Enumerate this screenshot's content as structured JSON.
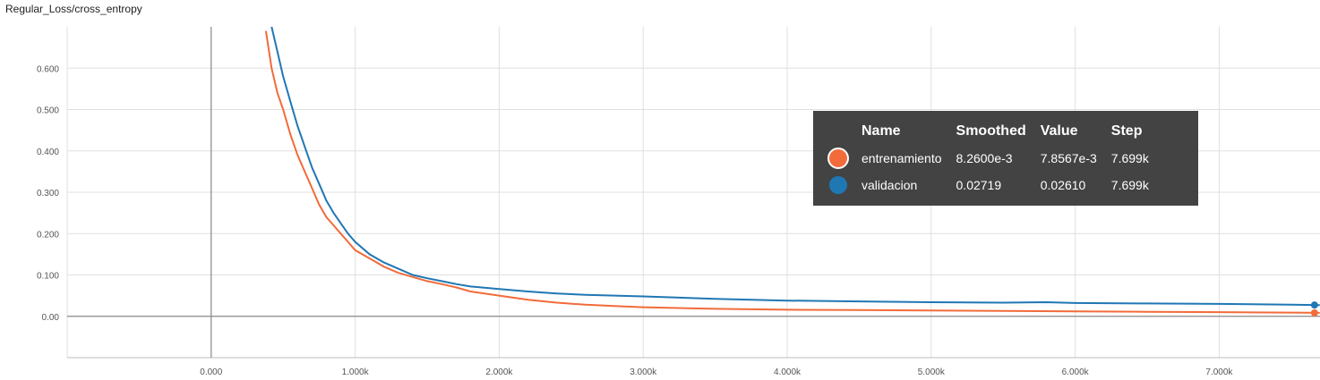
{
  "chart_data": {
    "type": "line",
    "title": "Regular_Loss/cross_entropy",
    "xlabel": "",
    "ylabel": "",
    "xlim": [
      -1000,
      7700
    ],
    "ylim": [
      -0.1,
      0.7
    ],
    "x_ticks": [
      0,
      1000,
      2000,
      3000,
      4000,
      5000,
      6000,
      7000
    ],
    "x_tick_labels": [
      "0.000",
      "1.000k",
      "2.000k",
      "3.000k",
      "4.000k",
      "5.000k",
      "6.000k",
      "7.000k"
    ],
    "y_ticks": [
      0,
      0.1,
      0.2,
      0.3,
      0.4,
      0.5,
      0.6
    ],
    "y_tick_labels": [
      "0.00",
      "0.100",
      "0.200",
      "0.300",
      "0.400",
      "0.500",
      "0.600"
    ],
    "grid": true,
    "series": [
      {
        "name": "entrenamiento",
        "color": "#f26b3a",
        "x": [
          380,
          420,
          460,
          500,
          550,
          600,
          650,
          700,
          750,
          800,
          850,
          900,
          950,
          1000,
          1100,
          1200,
          1300,
          1400,
          1500,
          1600,
          1700,
          1800,
          2000,
          2200,
          2400,
          2600,
          2800,
          3000,
          3500,
          4000,
          4500,
          5000,
          5500,
          6000,
          6500,
          7000,
          7500,
          7699
        ],
        "y": [
          0.69,
          0.6,
          0.54,
          0.5,
          0.44,
          0.39,
          0.35,
          0.31,
          0.27,
          0.24,
          0.22,
          0.2,
          0.18,
          0.16,
          0.14,
          0.12,
          0.105,
          0.095,
          0.085,
          0.078,
          0.07,
          0.06,
          0.05,
          0.04,
          0.033,
          0.028,
          0.025,
          0.022,
          0.018,
          0.016,
          0.015,
          0.014,
          0.013,
          0.012,
          0.011,
          0.01,
          0.009,
          0.0083
        ]
      },
      {
        "name": "validacion",
        "color": "#1f77b4",
        "x": [
          420,
          460,
          500,
          550,
          600,
          650,
          700,
          750,
          800,
          850,
          900,
          950,
          1000,
          1100,
          1200,
          1300,
          1400,
          1500,
          1600,
          1700,
          1800,
          2000,
          2200,
          2400,
          2600,
          2800,
          3000,
          3500,
          4000,
          4500,
          5000,
          5500,
          5800,
          6000,
          6500,
          7000,
          7500,
          7699
        ],
        "y": [
          0.7,
          0.64,
          0.58,
          0.52,
          0.46,
          0.41,
          0.36,
          0.32,
          0.28,
          0.25,
          0.225,
          0.2,
          0.18,
          0.15,
          0.13,
          0.115,
          0.1,
          0.092,
          0.085,
          0.078,
          0.072,
          0.066,
          0.06,
          0.055,
          0.052,
          0.05,
          0.048,
          0.042,
          0.038,
          0.036,
          0.034,
          0.033,
          0.034,
          0.032,
          0.031,
          0.03,
          0.028,
          0.0272
        ]
      }
    ]
  },
  "tooltip": {
    "headers": {
      "name": "Name",
      "smoothed": "Smoothed",
      "value": "Value",
      "step": "Step"
    },
    "rows": [
      {
        "name": "entrenamiento",
        "smoothed": "8.2600e-3",
        "value": "7.8567e-3",
        "step": "7.699k",
        "color": "#f26b3a"
      },
      {
        "name": "validacion",
        "smoothed": "0.02719",
        "value": "0.02610",
        "step": "7.699k",
        "color": "#1f77b4"
      }
    ]
  }
}
